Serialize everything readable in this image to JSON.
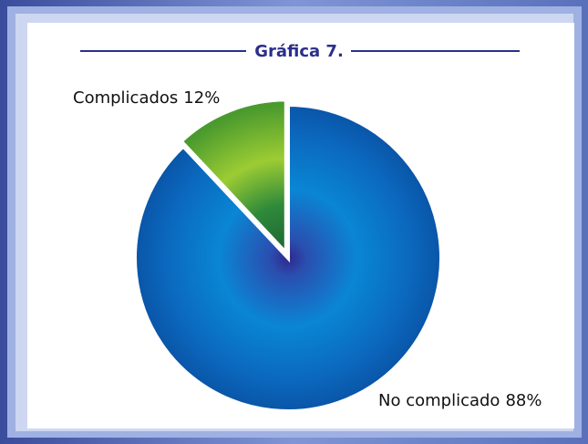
{
  "chart_data": {
    "type": "pie",
    "title": "Gráfica 7.",
    "categories": [
      "Complicados",
      "No complicado"
    ],
    "values": [
      12,
      88
    ],
    "value_labels": [
      "12%",
      "88%"
    ],
    "colors": [
      "#9ccc33",
      "#0a86d4"
    ]
  }
}
